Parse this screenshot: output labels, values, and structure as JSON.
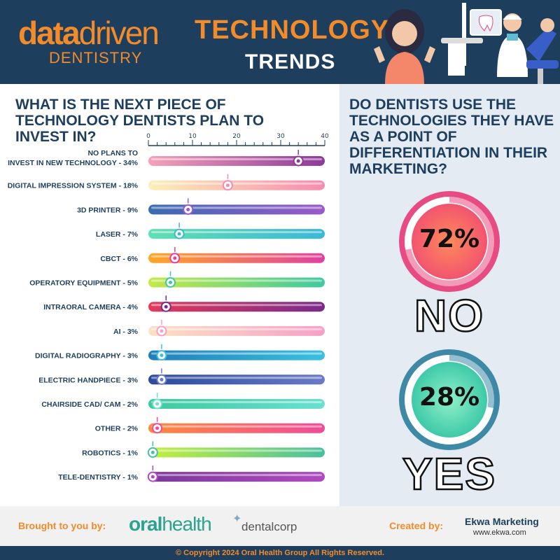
{
  "header": {
    "logo_data": "data",
    "logo_driven": "driven",
    "logo_sub": "DENTISTRY",
    "title_line1": "TECHNOLOGY",
    "title_line2": "TRENDS"
  },
  "left": {
    "question": "WHAT IS THE NEXT PIECE OF TECHNOLOGY DENTISTS PLAN TO INVEST IN?"
  },
  "right": {
    "question": "DO DENTISTS USE THE TECHNOLOGIES THEY HAVE AS A POINT OF DIFFERENTIATION IN THEIR MARKETING?",
    "no_pct_label": "72%",
    "no_label": "NO",
    "yes_pct_label": "28%",
    "yes_label": "YES"
  },
  "footer": {
    "brought_by": "Brought to you by:",
    "oral": "oral",
    "health": "health",
    "dentalcorp": "dentalcorp",
    "created_by": "Created by:",
    "ekwa_name": "Ekwa Marketing",
    "ekwa_url": "www.ekwa.com",
    "copyright": "© Copyright 2024 Oral Health Group All Rights Reserved."
  },
  "colors": {
    "navy": "#1d3e5d",
    "orange": "#f38b2a",
    "no_ring": "#e84a82",
    "yes_ring": "#3e8aa6"
  },
  "chart_data": [
    {
      "type": "bar",
      "title": "WHAT IS THE NEXT PIECE OF TECHNOLOGY DENTISTS PLAN TO INVEST IN?",
      "xlim": [
        0,
        40
      ],
      "xticks": [
        0,
        10,
        20,
        30,
        40
      ],
      "categories": [
        "NO PLANS TO INVEST IN NEW TECHNOLOGY - 34%",
        "DIGITAL IMPRESSION SYSTEM - 18%",
        "3D PRINTER - 9%",
        "LASER - 7%",
        "CBCT - 6%",
        "OPERATORY EQUIPMENT - 5%",
        "INTRAORAL CAMERA - 4%",
        "AI - 3%",
        "DIGITAL RADIOGRAPHY - 3%",
        "ELECTRIC HANDPIECE - 3%",
        "CHAIRSIDE CAD/ CAM - 2%",
        "OTHER - 2%",
        "ROBOTICS - 1%",
        "TELE-DENTISTRY - 1%"
      ],
      "label_lines": [
        [
          "NO PLANS TO",
          "INVEST IN NEW TECHNOLOGY - 34%"
        ],
        [
          "DIGITAL IMPRESSION SYSTEM - 18%"
        ],
        [
          "3D PRINTER - 9%"
        ],
        [
          "LASER - 7%"
        ],
        [
          "CBCT - 6%"
        ],
        [
          "OPERATORY EQUIPMENT - 5%"
        ],
        [
          "INTRAORAL CAMERA - 4%"
        ],
        [
          "AI - 3%"
        ],
        [
          "DIGITAL RADIOGRAPHY - 3%"
        ],
        [
          "ELECTRIC HANDPIECE - 3%"
        ],
        [
          "CHAIRSIDE CAD/ CAM - 2%"
        ],
        [
          "OTHER - 2%"
        ],
        [
          "ROBOTICS - 1%"
        ],
        [
          "TELE-DENTISTRY - 1%"
        ]
      ],
      "values": [
        34,
        18,
        9,
        7,
        6,
        5,
        4,
        3,
        3,
        3,
        2,
        2,
        1,
        1
      ],
      "bar_colors": [
        [
          "#f7a1b8",
          "#8e3a9b"
        ],
        [
          "#fbf0b8",
          "#f58cb0"
        ],
        [
          "#3a6bb0",
          "#9b59c9"
        ],
        [
          "#5fe0b0",
          "#3ab8d8"
        ],
        [
          "#ffa726",
          "#e040a0"
        ],
        [
          "#c6e84a",
          "#3ec9a0"
        ],
        [
          "#e23a5a",
          "#7a2a8a"
        ],
        [
          "#fde2c4",
          "#f5a0c8"
        ],
        [
          "#1f7fb8",
          "#3ac0e0"
        ],
        [
          "#2a4a9a",
          "#6a7ac8"
        ],
        [
          "#3ec9a0",
          "#6ae0d0"
        ],
        [
          "#ff8a3a",
          "#f04a9a"
        ],
        [
          "#c4f03a",
          "#4ac0a0"
        ],
        [
          "#7a3a9a",
          "#b04ac0"
        ]
      ]
    },
    {
      "type": "pie",
      "title": "DO DENTISTS USE THE TECHNOLOGIES THEY HAVE AS A POINT OF DIFFERENTIATION IN THEIR MARKETING?",
      "categories": [
        "NO",
        "YES"
      ],
      "values": [
        72,
        28
      ]
    }
  ]
}
